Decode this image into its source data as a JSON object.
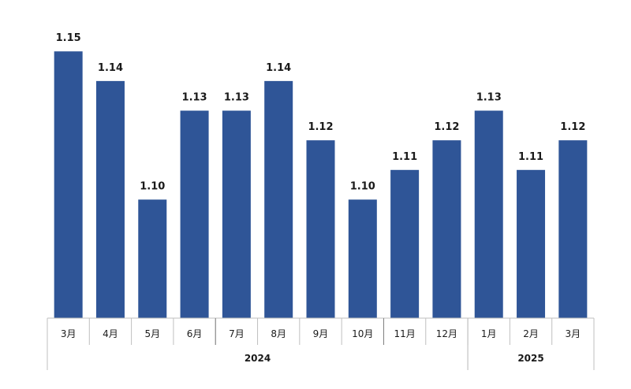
{
  "chart_data": {
    "type": "bar",
    "title": "",
    "xlabel": "",
    "ylabel": "",
    "ylim": [
      1.06,
      1.15
    ],
    "grid": false,
    "legend": "none",
    "colors": {
      "bar": "#2f5597",
      "axis": "#bfbfbf",
      "text": "#1a1a1a"
    },
    "categories": [
      "3月",
      "4月",
      "5月",
      "6月",
      "7月",
      "8月",
      "9月",
      "10月",
      "11月",
      "12月",
      "1月",
      "2月",
      "3月"
    ],
    "values": [
      1.15,
      1.14,
      1.1,
      1.13,
      1.13,
      1.14,
      1.12,
      1.1,
      1.11,
      1.12,
      1.13,
      1.11,
      1.12
    ],
    "value_labels": [
      "1.15",
      "1.14",
      "1.10",
      "1.13",
      "1.13",
      "1.14",
      "1.12",
      "1.10",
      "1.11",
      "1.12",
      "1.13",
      "1.11",
      "1.12"
    ],
    "year_groups": [
      {
        "label": "2024",
        "start": 0,
        "end": 9
      },
      {
        "label": "2025",
        "start": 10,
        "end": 12
      }
    ]
  }
}
